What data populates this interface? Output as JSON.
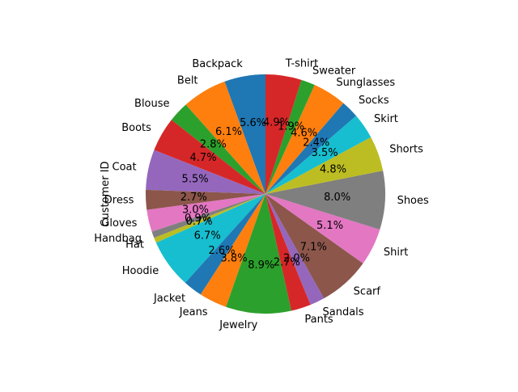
{
  "chart_data": {
    "type": "pie",
    "ylabel": "Customer ID",
    "start_angle_deg": 90,
    "direction": "counterclockwise",
    "label_format": "percent_1dp",
    "categories": [
      "Backpack",
      "Belt",
      "Blouse",
      "Boots",
      "Coat",
      "Dress",
      "Gloves",
      "Handbag",
      "Hat",
      "Hoodie",
      "Jacket",
      "Jeans",
      "Jewelry",
      "Pants",
      "Sandals",
      "Scarf",
      "Shirt",
      "Shoes",
      "Shorts",
      "Skirt",
      "Socks",
      "Sunglasses",
      "Sweater",
      "T-shirt"
    ],
    "values": [
      5.6,
      6.1,
      2.8,
      4.7,
      5.5,
      2.7,
      3.0,
      0.9,
      0.7,
      6.7,
      2.6,
      3.8,
      8.9,
      2.7,
      2.0,
      7.1,
      5.1,
      8.0,
      4.8,
      3.5,
      2.4,
      4.6,
      1.9,
      4.9
    ],
    "percent_labels": [
      "5.6%",
      "6.1%",
      "2.8%",
      "4.7%",
      "5.5%",
      "2.7%",
      "3.0%",
      "0.9%",
      "0.7%",
      "6.7%",
      "2.6%",
      "3.8%",
      "8.9%",
      "2.7%",
      "2.0%",
      "7.1%",
      "5.1%",
      "8.0%",
      "4.8%",
      "3.5%",
      "2.4%",
      "4.6%",
      "1.9%",
      "4.9%"
    ],
    "colors": [
      "#1f77b4",
      "#ff7f0e",
      "#2ca02c",
      "#d62728",
      "#9467bd",
      "#8c564b",
      "#e377c2",
      "#7f7f7f",
      "#bcbd22",
      "#17becf",
      "#1f77b4",
      "#ff7f0e",
      "#2ca02c",
      "#d62728",
      "#9467bd",
      "#8c564b",
      "#e377c2",
      "#7f7f7f",
      "#bcbd22",
      "#17becf",
      "#1f77b4",
      "#ff7f0e",
      "#2ca02c",
      "#d62728"
    ],
    "legend": "none",
    "grid": false
  }
}
